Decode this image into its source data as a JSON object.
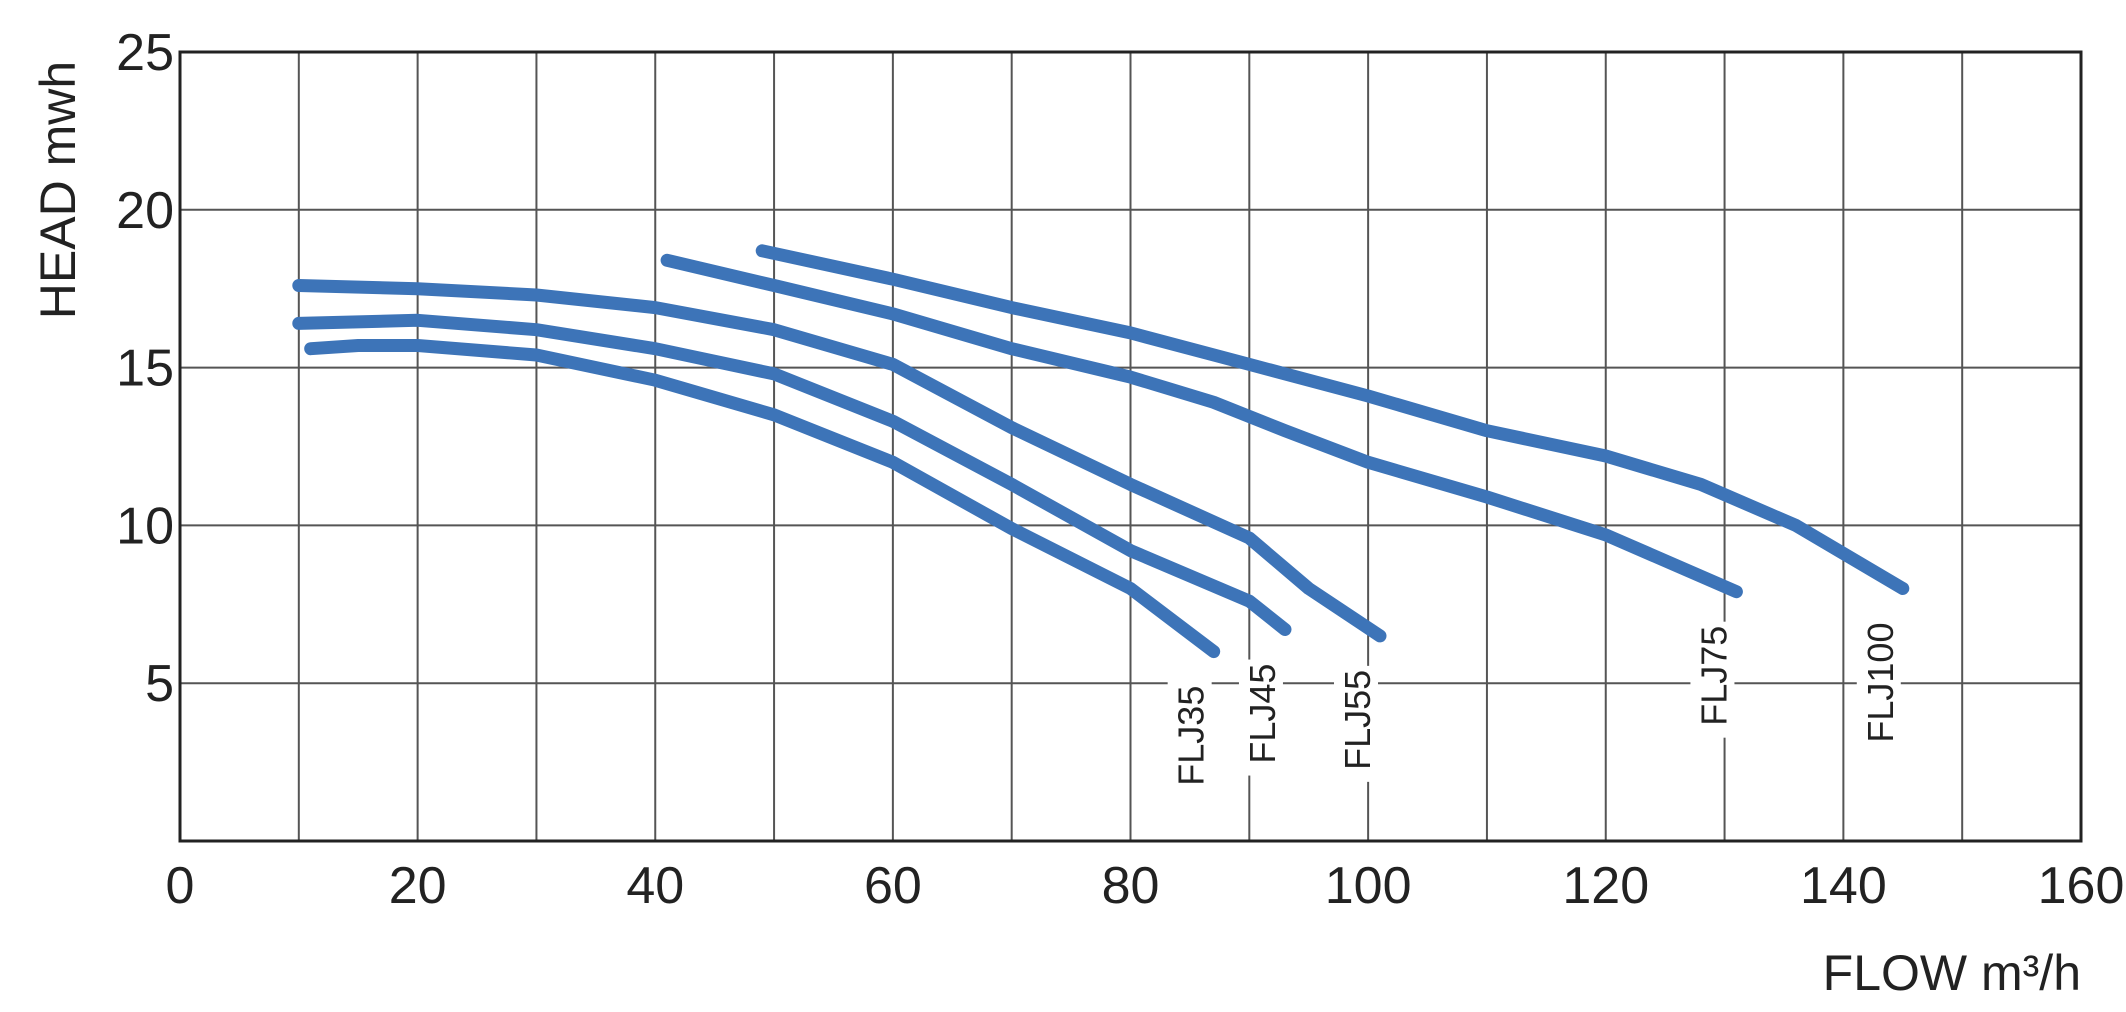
{
  "chart_data": {
    "type": "line",
    "y_label": "HEAD mwh",
    "x_label": "FLOW  m³/h",
    "xlim": [
      0,
      160
    ],
    "xticks": [
      0,
      20,
      40,
      60,
      80,
      100,
      120,
      140,
      160
    ],
    "xgrid": [
      10,
      30,
      50,
      70,
      90,
      110,
      130,
      150
    ],
    "ylim": [
      0,
      25
    ],
    "yticks": [
      5,
      10,
      15,
      20,
      25
    ],
    "grid": true,
    "series": [
      {
        "name": "FLJ35",
        "color": "#3d74b8",
        "x": [
          11,
          15,
          20,
          30,
          40,
          50,
          60,
          70,
          80,
          87
        ],
        "values": [
          15.6,
          15.7,
          15.7,
          15.4,
          14.6,
          13.5,
          12.0,
          9.9,
          8.0,
          6.0
        ]
      },
      {
        "name": "FLJ45",
        "color": "#3d74b8",
        "x": [
          10,
          20,
          30,
          40,
          50,
          60,
          70,
          80,
          90,
          93
        ],
        "values": [
          16.4,
          16.5,
          16.2,
          15.6,
          14.8,
          13.3,
          11.3,
          9.2,
          7.6,
          6.7
        ]
      },
      {
        "name": "FLJ55",
        "color": "#3d74b8",
        "x": [
          10,
          20,
          30,
          40,
          50,
          60,
          70,
          80,
          90,
          95,
          101
        ],
        "values": [
          17.6,
          17.5,
          17.3,
          16.9,
          16.2,
          15.1,
          13.1,
          11.3,
          9.6,
          8.0,
          6.5
        ]
      },
      {
        "name": "FLJ75",
        "color": "#3d74b8",
        "x": [
          41,
          50,
          60,
          70,
          80,
          87,
          93,
          100,
          110,
          120,
          131
        ],
        "values": [
          18.4,
          17.6,
          16.7,
          15.6,
          14.7,
          13.9,
          13.0,
          12.0,
          10.9,
          9.7,
          7.9
        ]
      },
      {
        "name": "FLJ100",
        "color": "#3d74b8",
        "x": [
          49,
          60,
          70,
          80,
          90,
          100,
          110,
          120,
          128,
          136,
          145
        ],
        "values": [
          18.7,
          17.8,
          16.9,
          16.1,
          15.1,
          14.1,
          13.0,
          12.2,
          11.3,
          10.0,
          8.0
        ]
      }
    ]
  }
}
